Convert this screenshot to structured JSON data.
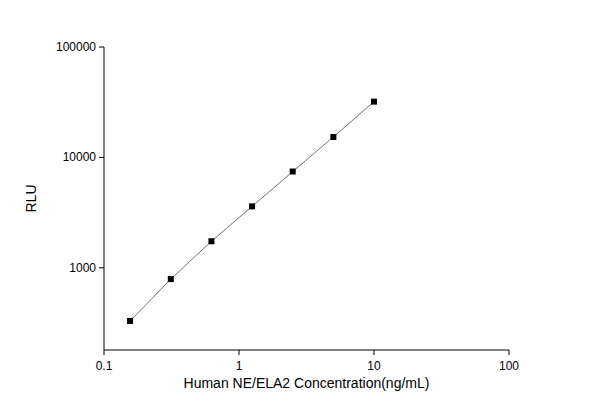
{
  "chart_data": {
    "type": "line",
    "x_label": "Human NE/ELA2 Concentration(ng/mL)",
    "y_label": "RLU",
    "x": [
      0.156,
      0.3125,
      0.625,
      1.25,
      2.5,
      5,
      10
    ],
    "values": [
      330,
      790,
      1740,
      3600,
      7450,
      15300,
      32000
    ],
    "color": "#000000",
    "marker": "square",
    "log": true,
    "grid": false,
    "xlim": [
      0.1,
      100
    ],
    "ylim": [
      180,
      100000
    ],
    "xticks": [
      0.1,
      1,
      10,
      100
    ],
    "yticks": [
      1000,
      10000,
      100000
    ]
  }
}
